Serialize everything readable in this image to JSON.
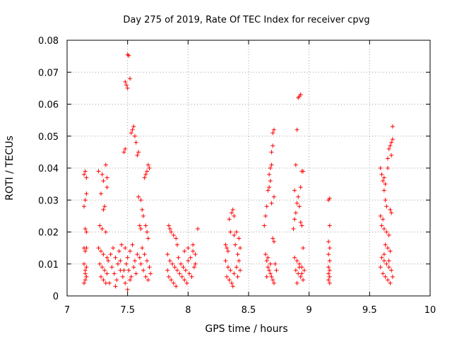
{
  "chart_data": {
    "type": "scatter",
    "title": "Day 275 of 2019, Rate Of TEC Index for receiver cpvg",
    "xlabel": "GPS time / hours",
    "ylabel": "ROTI / TECUs",
    "xlim": [
      7,
      10
    ],
    "ylim": [
      0,
      0.08
    ],
    "x_ticks": [
      7,
      7.5,
      8,
      8.5,
      9,
      9.5,
      10
    ],
    "x_tick_labels": [
      "7",
      "7.5",
      "8",
      "8.5",
      "9",
      "9.5",
      "10"
    ],
    "y_ticks": [
      0,
      0.01,
      0.02,
      0.03,
      0.04,
      0.05,
      0.06,
      0.07,
      0.08
    ],
    "y_tick_labels": [
      "0",
      "0.01",
      "0.02",
      "0.03",
      "0.04",
      "0.05",
      "0.06",
      "0.07",
      "0.08"
    ],
    "grid": true,
    "marker": "+",
    "color": "#ff0000",
    "series": [
      {
        "name": "ROTI",
        "points": [
          [
            7.14,
            0.038
          ],
          [
            7.15,
            0.039
          ],
          [
            7.16,
            0.037
          ],
          [
            7.14,
            0.028
          ],
          [
            7.15,
            0.03
          ],
          [
            7.16,
            0.032
          ],
          [
            7.15,
            0.021
          ],
          [
            7.16,
            0.02
          ],
          [
            7.14,
            0.015
          ],
          [
            7.15,
            0.014
          ],
          [
            7.16,
            0.015
          ],
          [
            7.14,
            0.01
          ],
          [
            7.15,
            0.008
          ],
          [
            7.16,
            0.006
          ],
          [
            7.15,
            0.005
          ],
          [
            7.14,
            0.004
          ],
          [
            7.16,
            0.009
          ],
          [
            7.15,
            0.007
          ],
          [
            7.26,
            0.039
          ],
          [
            7.29,
            0.038
          ],
          [
            7.32,
            0.041
          ],
          [
            7.3,
            0.036
          ],
          [
            7.33,
            0.037
          ],
          [
            7.28,
            0.032
          ],
          [
            7.31,
            0.028
          ],
          [
            7.3,
            0.027
          ],
          [
            7.33,
            0.034
          ],
          [
            7.27,
            0.022
          ],
          [
            7.29,
            0.021
          ],
          [
            7.32,
            0.02
          ],
          [
            7.26,
            0.015
          ],
          [
            7.28,
            0.014
          ],
          [
            7.3,
            0.013
          ],
          [
            7.33,
            0.012
          ],
          [
            7.27,
            0.01
          ],
          [
            7.29,
            0.009
          ],
          [
            7.31,
            0.008
          ],
          [
            7.33,
            0.007
          ],
          [
            7.28,
            0.006
          ],
          [
            7.3,
            0.005
          ],
          [
            7.32,
            0.004
          ],
          [
            7.34,
            0.011
          ],
          [
            7.36,
            0.013
          ],
          [
            7.38,
            0.015
          ],
          [
            7.4,
            0.012
          ],
          [
            7.42,
            0.01
          ],
          [
            7.44,
            0.008
          ],
          [
            7.46,
            0.006
          ],
          [
            7.37,
            0.009
          ],
          [
            7.39,
            0.007
          ],
          [
            7.41,
            0.005
          ],
          [
            7.43,
            0.014
          ],
          [
            7.45,
            0.016
          ],
          [
            7.35,
            0.004
          ],
          [
            7.4,
            0.003
          ],
          [
            7.44,
            0.011
          ],
          [
            7.47,
            0.045
          ],
          [
            7.48,
            0.046
          ],
          [
            7.48,
            0.067
          ],
          [
            7.49,
            0.066
          ],
          [
            7.5,
            0.065
          ],
          [
            7.5,
            0.0755
          ],
          [
            7.51,
            0.0752
          ],
          [
            7.52,
            0.068
          ],
          [
            7.53,
            0.051
          ],
          [
            7.54,
            0.052
          ],
          [
            7.55,
            0.053
          ],
          [
            7.56,
            0.05
          ],
          [
            7.57,
            0.048
          ],
          [
            7.58,
            0.044
          ],
          [
            7.59,
            0.045
          ],
          [
            7.48,
            0.015
          ],
          [
            7.5,
            0.012
          ],
          [
            7.52,
            0.014
          ],
          [
            7.54,
            0.016
          ],
          [
            7.49,
            0.01
          ],
          [
            7.51,
            0.008
          ],
          [
            7.53,
            0.006
          ],
          [
            7.55,
            0.009
          ],
          [
            7.57,
            0.007
          ],
          [
            7.48,
            0.004
          ],
          [
            7.5,
            0.002
          ],
          [
            7.52,
            0.005
          ],
          [
            7.56,
            0.011
          ],
          [
            7.58,
            0.013
          ],
          [
            7.47,
            0.008
          ],
          [
            7.59,
            0.031
          ],
          [
            7.61,
            0.03
          ],
          [
            7.62,
            0.027
          ],
          [
            7.63,
            0.025
          ],
          [
            7.6,
            0.022
          ],
          [
            7.61,
            0.021
          ],
          [
            7.64,
            0.037
          ],
          [
            7.65,
            0.038
          ],
          [
            7.66,
            0.039
          ],
          [
            7.67,
            0.041
          ],
          [
            7.68,
            0.04
          ],
          [
            7.65,
            0.022
          ],
          [
            7.66,
            0.02
          ],
          [
            7.67,
            0.018
          ],
          [
            7.62,
            0.015
          ],
          [
            7.64,
            0.013
          ],
          [
            7.66,
            0.011
          ],
          [
            7.68,
            0.009
          ],
          [
            7.63,
            0.008
          ],
          [
            7.65,
            0.006
          ],
          [
            7.67,
            0.005
          ],
          [
            7.61,
            0.01
          ],
          [
            7.69,
            0.007
          ],
          [
            7.6,
            0.012
          ],
          [
            7.84,
            0.022
          ],
          [
            7.85,
            0.021
          ],
          [
            7.86,
            0.02
          ],
          [
            7.88,
            0.019
          ],
          [
            7.9,
            0.018
          ],
          [
            7.91,
            0.016
          ],
          [
            7.83,
            0.013
          ],
          [
            7.85,
            0.011
          ],
          [
            7.87,
            0.01
          ],
          [
            7.89,
            0.009
          ],
          [
            7.91,
            0.008
          ],
          [
            7.93,
            0.007
          ],
          [
            7.84,
            0.006
          ],
          [
            7.86,
            0.005
          ],
          [
            7.88,
            0.004
          ],
          [
            7.9,
            0.003
          ],
          [
            7.92,
            0.012
          ],
          [
            7.94,
            0.01
          ],
          [
            7.96,
            0.009
          ],
          [
            7.98,
            0.008
          ],
          [
            8.0,
            0.011
          ],
          [
            8.02,
            0.012
          ],
          [
            8.04,
            0.014
          ],
          [
            8.06,
            0.01
          ],
          [
            7.95,
            0.006
          ],
          [
            7.97,
            0.005
          ],
          [
            7.99,
            0.004
          ],
          [
            8.01,
            0.007
          ],
          [
            8.03,
            0.006
          ],
          [
            8.05,
            0.009
          ],
          [
            7.97,
            0.014
          ],
          [
            8.0,
            0.015
          ],
          [
            8.08,
            0.021
          ],
          [
            8.04,
            0.016
          ],
          [
            8.06,
            0.013
          ],
          [
            7.83,
            0.008
          ],
          [
            8.31,
            0.016
          ],
          [
            8.32,
            0.015
          ],
          [
            8.33,
            0.014
          ],
          [
            8.31,
            0.011
          ],
          [
            8.33,
            0.009
          ],
          [
            8.35,
            0.008
          ],
          [
            8.32,
            0.006
          ],
          [
            8.34,
            0.005
          ],
          [
            8.36,
            0.004
          ],
          [
            8.38,
            0.007
          ],
          [
            8.4,
            0.009
          ],
          [
            8.42,
            0.011
          ],
          [
            8.34,
            0.024
          ],
          [
            8.36,
            0.026
          ],
          [
            8.37,
            0.027
          ],
          [
            8.38,
            0.025
          ],
          [
            8.35,
            0.02
          ],
          [
            8.38,
            0.019
          ],
          [
            8.4,
            0.02
          ],
          [
            8.42,
            0.018
          ],
          [
            8.39,
            0.016
          ],
          [
            8.41,
            0.013
          ],
          [
            8.43,
            0.015
          ],
          [
            8.37,
            0.003
          ],
          [
            8.41,
            0.006
          ],
          [
            8.43,
            0.008
          ],
          [
            8.63,
            0.022
          ],
          [
            8.64,
            0.025
          ],
          [
            8.65,
            0.028
          ],
          [
            8.66,
            0.033
          ],
          [
            8.67,
            0.034
          ],
          [
            8.68,
            0.036
          ],
          [
            8.67,
            0.038
          ],
          [
            8.68,
            0.04
          ],
          [
            8.69,
            0.041
          ],
          [
            8.69,
            0.045
          ],
          [
            8.7,
            0.047
          ],
          [
            8.7,
            0.051
          ],
          [
            8.71,
            0.052
          ],
          [
            8.69,
            0.029
          ],
          [
            8.71,
            0.031
          ],
          [
            8.7,
            0.018
          ],
          [
            8.71,
            0.017
          ],
          [
            8.64,
            0.013
          ],
          [
            8.65,
            0.011
          ],
          [
            8.66,
            0.009
          ],
          [
            8.67,
            0.008
          ],
          [
            8.68,
            0.007
          ],
          [
            8.69,
            0.006
          ],
          [
            8.7,
            0.005
          ],
          [
            8.71,
            0.004
          ],
          [
            8.72,
            0.01
          ],
          [
            8.66,
            0.012
          ],
          [
            8.68,
            0.01
          ],
          [
            8.65,
            0.006
          ],
          [
            8.73,
            0.008
          ],
          [
            8.87,
            0.021
          ],
          [
            8.88,
            0.024
          ],
          [
            8.89,
            0.026
          ],
          [
            8.9,
            0.029
          ],
          [
            8.91,
            0.031
          ],
          [
            8.88,
            0.033
          ],
          [
            8.89,
            0.041
          ],
          [
            8.9,
            0.052
          ],
          [
            8.91,
            0.062
          ],
          [
            8.92,
            0.0625
          ],
          [
            8.93,
            0.063
          ],
          [
            8.93,
            0.034
          ],
          [
            8.94,
            0.039
          ],
          [
            8.95,
            0.039
          ],
          [
            8.92,
            0.028
          ],
          [
            8.93,
            0.023
          ],
          [
            8.94,
            0.022
          ],
          [
            8.95,
            0.015
          ],
          [
            8.88,
            0.012
          ],
          [
            8.9,
            0.011
          ],
          [
            8.92,
            0.01
          ],
          [
            8.94,
            0.009
          ],
          [
            8.89,
            0.008
          ],
          [
            8.91,
            0.007
          ],
          [
            8.93,
            0.006
          ],
          [
            8.95,
            0.005
          ],
          [
            8.9,
            0.004
          ],
          [
            8.92,
            0.009
          ],
          [
            8.94,
            0.007
          ],
          [
            8.96,
            0.008
          ],
          [
            9.16,
            0.03
          ],
          [
            9.17,
            0.0305
          ],
          [
            9.17,
            0.022
          ],
          [
            9.16,
            0.017
          ],
          [
            9.17,
            0.015
          ],
          [
            9.16,
            0.013
          ],
          [
            9.17,
            0.011
          ],
          [
            9.16,
            0.009
          ],
          [
            9.17,
            0.008
          ],
          [
            9.16,
            0.007
          ],
          [
            9.17,
            0.006
          ],
          [
            9.16,
            0.005
          ],
          [
            9.17,
            0.004
          ],
          [
            9.59,
            0.04
          ],
          [
            9.6,
            0.038
          ],
          [
            9.61,
            0.036
          ],
          [
            9.62,
            0.037
          ],
          [
            9.63,
            0.035
          ],
          [
            9.62,
            0.033
          ],
          [
            9.63,
            0.03
          ],
          [
            9.64,
            0.028
          ],
          [
            9.65,
            0.04
          ],
          [
            9.65,
            0.043
          ],
          [
            9.66,
            0.046
          ],
          [
            9.67,
            0.047
          ],
          [
            9.68,
            0.048
          ],
          [
            9.69,
            0.049
          ],
          [
            9.69,
            0.053
          ],
          [
            9.68,
            0.044
          ],
          [
            9.67,
            0.027
          ],
          [
            9.68,
            0.026
          ],
          [
            9.59,
            0.025
          ],
          [
            9.61,
            0.024
          ],
          [
            9.6,
            0.022
          ],
          [
            9.62,
            0.021
          ],
          [
            9.64,
            0.02
          ],
          [
            9.66,
            0.019
          ],
          [
            9.63,
            0.016
          ],
          [
            9.65,
            0.015
          ],
          [
            9.67,
            0.014
          ],
          [
            9.6,
            0.012
          ],
          [
            9.62,
            0.011
          ],
          [
            9.64,
            0.01
          ],
          [
            9.66,
            0.009
          ],
          [
            9.68,
            0.008
          ],
          [
            9.61,
            0.007
          ],
          [
            9.63,
            0.006
          ],
          [
            9.65,
            0.005
          ],
          [
            9.67,
            0.004
          ],
          [
            9.69,
            0.006
          ],
          [
            9.59,
            0.009
          ],
          [
            9.62,
            0.013
          ],
          [
            9.66,
            0.011
          ]
        ]
      }
    ]
  }
}
